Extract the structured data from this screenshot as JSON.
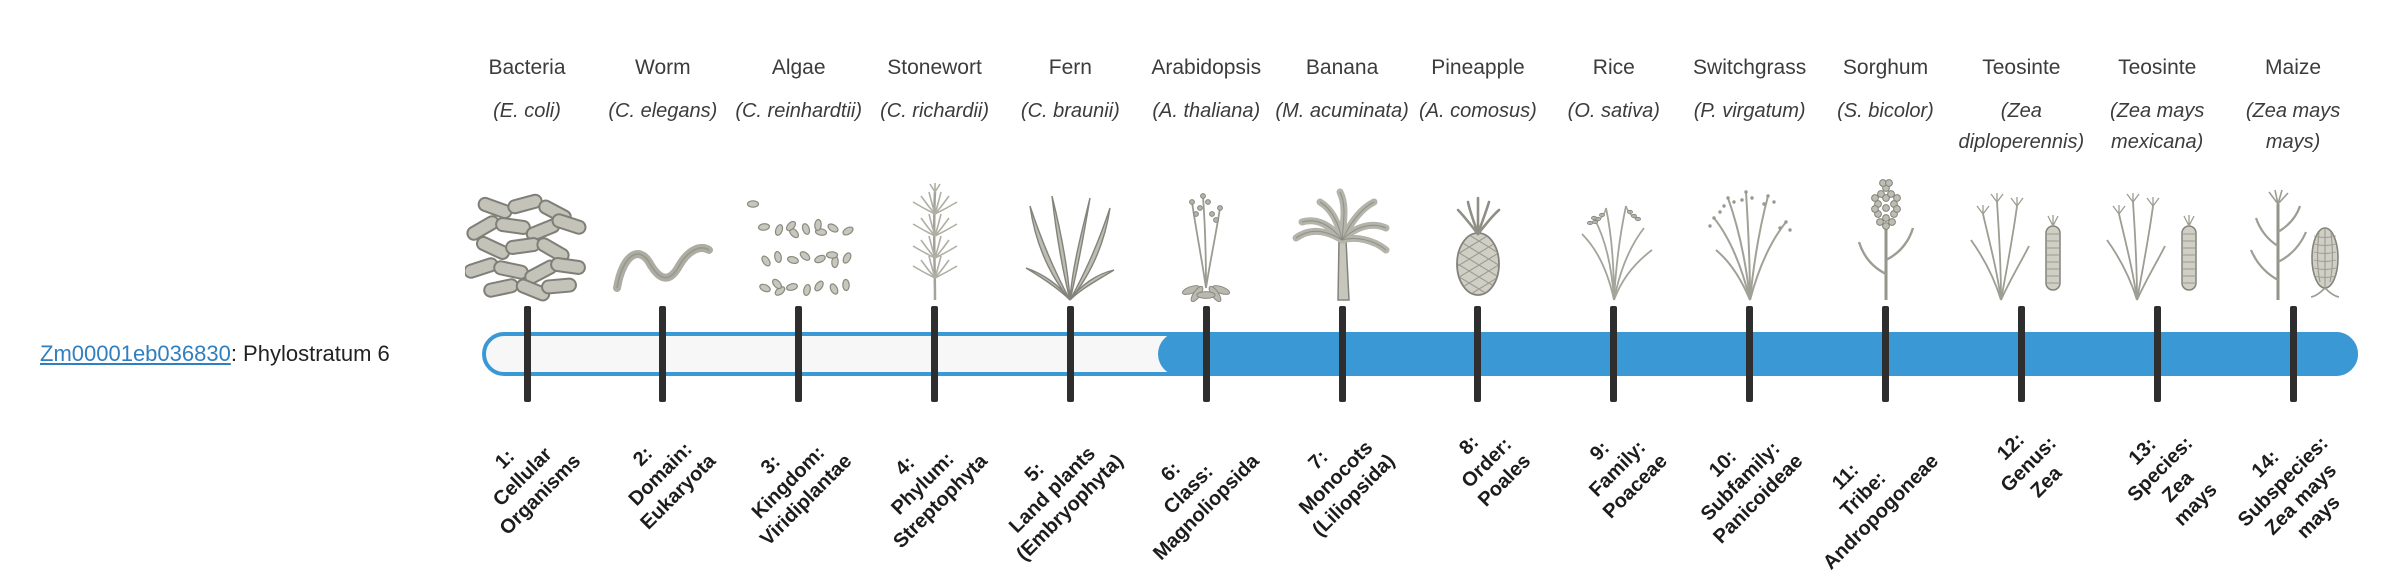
{
  "gene": {
    "id": "Zm00001eb036830",
    "suffix": ": Phylostratum 6",
    "phylostratum": 6
  },
  "colors": {
    "accent": "#3a99d5",
    "track_empty": "#f7f7f7",
    "tick": "#2e2e2e",
    "text": "#3c3c3c",
    "link": "#2f7fc1"
  },
  "organisms": [
    {
      "name": "Bacteria",
      "sci": "(E. coli)",
      "icon": "bacteria-icon"
    },
    {
      "name": "Worm",
      "sci": "(C. elegans)",
      "icon": "worm-icon"
    },
    {
      "name": "Algae",
      "sci": "(C. reinhardtii)",
      "icon": "algae-icon"
    },
    {
      "name": "Stonewort",
      "sci": "(C. richardii)",
      "icon": "stonewort-icon"
    },
    {
      "name": "Fern",
      "sci": "(C. braunii)",
      "icon": "fern-icon"
    },
    {
      "name": "Arabidopsis",
      "sci": "(A. thaliana)",
      "icon": "arabidopsis-icon"
    },
    {
      "name": "Banana",
      "sci": "(M. acuminata)",
      "icon": "banana-icon"
    },
    {
      "name": "Pineapple",
      "sci": "(A. comosus)",
      "icon": "pineapple-icon"
    },
    {
      "name": "Rice",
      "sci": "(O. sativa)",
      "icon": "rice-icon"
    },
    {
      "name": "Switchgrass",
      "sci": "(P. virgatum)",
      "icon": "switchgrass-icon"
    },
    {
      "name": "Sorghum",
      "sci": "(S. bicolor)",
      "icon": "sorghum-icon"
    },
    {
      "name": "Teosinte",
      "sci": "(Zea diploperennis)",
      "icon": "teosinte-icon"
    },
    {
      "name": "Teosinte",
      "sci": "(Zea mays mexicana)",
      "icon": "teosinte-icon"
    },
    {
      "name": "Maize",
      "sci": "(Zea mays mays)",
      "icon": "maize-icon"
    }
  ],
  "strata": [
    {
      "num": 1,
      "lines": [
        "1:",
        "Cellular",
        "Organisms"
      ]
    },
    {
      "num": 2,
      "lines": [
        "2:",
        "Domain:",
        "Eukaryota"
      ]
    },
    {
      "num": 3,
      "lines": [
        "3:",
        "Kingdom:",
        "Viridiplantae"
      ]
    },
    {
      "num": 4,
      "lines": [
        "4:",
        "Phylum:",
        "Streptophyta"
      ]
    },
    {
      "num": 5,
      "lines": [
        "5:",
        "Land plants",
        "(Embryophyta)"
      ]
    },
    {
      "num": 6,
      "lines": [
        "6:",
        "Class:",
        "Magnoliopsida"
      ]
    },
    {
      "num": 7,
      "lines": [
        "7:",
        "Monocots",
        "(Liliopsida)"
      ]
    },
    {
      "num": 8,
      "lines": [
        "8:",
        "Order:",
        "Poales"
      ]
    },
    {
      "num": 9,
      "lines": [
        "9:",
        "Family:",
        "Poaceae"
      ]
    },
    {
      "num": 10,
      "lines": [
        "10:",
        "Subfamily:",
        "Panicoideae"
      ]
    },
    {
      "num": 11,
      "lines": [
        "11:",
        "Tribe:",
        "Andropogoneae"
      ]
    },
    {
      "num": 12,
      "lines": [
        "12:",
        "Genus:",
        "Zea"
      ]
    },
    {
      "num": 13,
      "lines": [
        "13:",
        "Species:",
        "Zea",
        "mays"
      ]
    },
    {
      "num": 14,
      "lines": [
        "14:",
        "Subspecies:",
        "Zea mays",
        "mays"
      ]
    }
  ]
}
